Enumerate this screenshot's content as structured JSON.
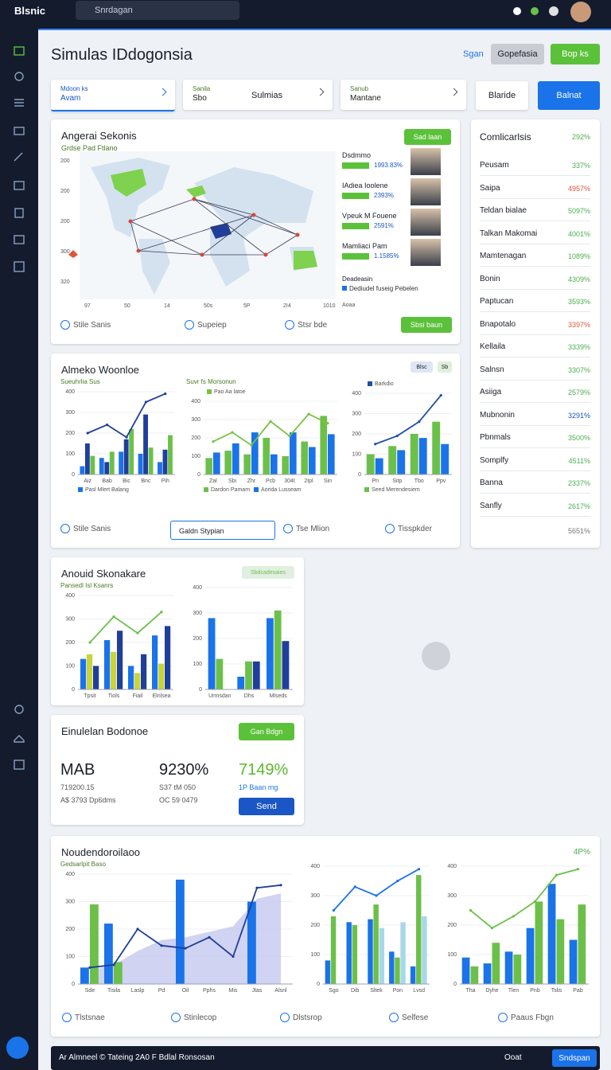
{
  "header": {
    "logo": "Blsnic",
    "search": "Snrdagan"
  },
  "page": {
    "title": "Simulas IDdogonsia",
    "link": "Sgan",
    "buttons": [
      "Gopefasia",
      "Bop ks"
    ]
  },
  "tabs": [
    {
      "small": "Mdoon ks",
      "label": "Avam"
    },
    {
      "small": "Sanila",
      "label": "Sbo",
      "value": "Sulmias"
    },
    {
      "small": "Sanub",
      "label": "Mantane"
    }
  ],
  "tab_buttons": [
    "Blaride",
    "Balnat"
  ],
  "map_card": {
    "title": "Angerai Sekonis",
    "subtitle": "Grdse Pad Ftlano",
    "button_top": "Sad laan",
    "y_labels": [
      "200",
      "200",
      "200",
      "300",
      "320"
    ],
    "x_labels": [
      "97",
      "50",
      "14",
      "50s",
      "5P",
      "2I4",
      "1010"
    ],
    "people": [
      {
        "name": "Dsdmmo",
        "value": "1993.83%"
      },
      {
        "name": "IAdiea Ioolene",
        "value": "2393%"
      },
      {
        "name": "Vpeuk M Fouene",
        "value": "2591%"
      },
      {
        "name": "Mamliaci Pam",
        "value": "1.1585%"
      }
    ],
    "note_title": "Deadeasin",
    "note_legend": "Dediudel fuseig Pebelen",
    "note_extra": "Aoaa",
    "footer": [
      "Stile Sanis",
      "Supeiep",
      "Stsr bde"
    ],
    "button": "Sbsi baun"
  },
  "right_list": {
    "title": "Comlicarlsis",
    "value": "292%",
    "rows": [
      {
        "name": "Peusam",
        "value": "337%",
        "color": "#4caf50"
      },
      {
        "name": "Saipa",
        "value": "4957%",
        "color": "#e0553b"
      },
      {
        "name": "Teldan bialae",
        "value": "5097%",
        "color": "#4caf50"
      },
      {
        "name": "Talkan Makomai",
        "value": "4001%",
        "color": "#4caf50"
      },
      {
        "name": "Mamtenagan",
        "value": "1089%",
        "color": "#4caf50"
      },
      {
        "name": "Bonin",
        "value": "4309%",
        "color": "#4caf50"
      },
      {
        "name": "Paptucan",
        "value": "3593%",
        "color": "#4caf50"
      },
      {
        "name": "Bnapotalo",
        "value": "3397%",
        "color": "#e0553b"
      },
      {
        "name": "Kellaila",
        "value": "3339%",
        "color": "#4caf50"
      },
      {
        "name": "Salnsn",
        "value": "3307%",
        "color": "#4caf50"
      },
      {
        "name": "Asiiga",
        "value": "2579%",
        "color": "#4caf50"
      },
      {
        "name": "Mubnonin",
        "value": "3291%",
        "color": "#1a56c4"
      },
      {
        "name": "Pbnmals",
        "value": "3500%",
        "color": "#4caf50"
      },
      {
        "name": "Somplfy",
        "value": "4511%",
        "color": "#4caf50"
      },
      {
        "name": "Banna",
        "value": "2337%",
        "color": "#4caf50"
      },
      {
        "name": "Sanfly",
        "value": "2617%",
        "color": "#4caf50"
      }
    ],
    "footer": "5651%"
  },
  "card2": {
    "title": "Almeko Woonloe",
    "badges": [
      "Blsc",
      "Sb"
    ],
    "charts": [
      {
        "type": "bar-line",
        "title": "Sueuhrlia Sus",
        "ylim": [
          0,
          400
        ],
        "yticks": [
          0,
          100,
          200,
          300,
          400
        ],
        "categories": [
          "Aiz",
          "Bab",
          "Bic",
          "Bnc",
          "Pih"
        ],
        "series": [
          {
            "name": "Pasl Mlert Balang",
            "type": "bar",
            "color": "#1a73e8",
            "values": [
              40,
              80,
              110,
              100,
              60
            ]
          },
          {
            "type": "bar",
            "color": "#1f3f9a",
            "values": [
              150,
              60,
              170,
              290,
              120
            ]
          },
          {
            "type": "bar",
            "color": "#6cc04a",
            "values": [
              90,
              110,
              220,
              130,
              190
            ]
          },
          {
            "type": "line",
            "color": "#1f3f9a",
            "values": [
              200,
              240,
              180,
              350,
              390
            ]
          }
        ]
      },
      {
        "type": "bar-line",
        "title": "Suvr fs Morsonun",
        "ylim": [
          0,
          400
        ],
        "yticks": [
          0,
          100,
          200,
          300,
          400
        ],
        "categories": [
          "Zal",
          "Sbi",
          "Zhr",
          "Pcb",
          "304t",
          "2Ipl",
          "Sin"
        ],
        "series": [
          {
            "name": "Dardon Pamam",
            "type": "bar",
            "color": "#6cc04a",
            "values": [
              90,
              130,
              110,
              200,
              100,
              180,
              320
            ]
          },
          {
            "name": "Aorida Lusseam",
            "type": "bar",
            "color": "#1a73e8",
            "values": [
              120,
              170,
              230,
              110,
              230,
              150,
              220
            ]
          },
          {
            "name": "Pao Aa latoe",
            "type": "line",
            "color": "#7ac143",
            "values": [
              180,
              230,
              160,
              290,
              210,
              330,
              280
            ]
          }
        ]
      },
      {
        "type": "bar-line",
        "ylim": [
          0,
          400
        ],
        "yticks": [
          0,
          100,
          200,
          300,
          400
        ],
        "categories": [
          "Pn",
          "Sitp",
          "Tbo",
          "Ppv"
        ],
        "series": [
          {
            "name": "Seed Merendesiem",
            "type": "bar",
            "color": "#6cc04a",
            "values": [
              100,
              140,
              200,
              260
            ]
          },
          {
            "type": "bar",
            "color": "#1a73e8",
            "values": [
              80,
              120,
              180,
              150
            ]
          },
          {
            "name": "Barkdio",
            "type": "line",
            "color": "#1f4fa8",
            "values": [
              150,
              190,
              260,
              390
            ]
          }
        ]
      }
    ],
    "footer": [
      "Stile Sanis",
      "Galdn Stypian",
      "Tse Mlion",
      "Tisspkder"
    ]
  },
  "card3": {
    "title": "Anouid Skonakare",
    "badge": "Sbdcadesaies",
    "charts": [
      {
        "type": "bar-line",
        "title": "Pansedl Isl Ksanrs",
        "ylim": [
          0,
          400
        ],
        "yticks": [
          0,
          100,
          200,
          300,
          400
        ],
        "categories": [
          "Tpsit",
          "Tiols",
          "Fiail",
          "Elnlsea"
        ],
        "series": [
          {
            "type": "bar",
            "color": "#1a73e8",
            "values": [
              130,
              210,
              100,
              230
            ]
          },
          {
            "type": "bar",
            "color": "#c9d33a",
            "values": [
              150,
              160,
              70,
              110
            ]
          },
          {
            "type": "bar",
            "color": "#1f3f9a",
            "values": [
              100,
              250,
              150,
              270
            ]
          },
          {
            "type": "line",
            "color": "#6cc04a",
            "values": [
              200,
              310,
              240,
              330
            ]
          }
        ]
      },
      {
        "type": "bar-line",
        "ylim": [
          0,
          400
        ],
        "yticks": [
          0,
          100,
          200,
          300,
          400
        ],
        "categories": [
          "Urmsdan",
          "Dhs",
          "Mlseds"
        ],
        "series": [
          {
            "type": "bar",
            "color": "#1a73e8",
            "values": [
              280,
              50,
              280
            ]
          },
          {
            "type": "bar",
            "color": "#6cc04a",
            "values": [
              120,
              110,
              310
            ]
          },
          {
            "type": "bar",
            "color": "#1f3f9a",
            "values": [
              0,
              110,
              190
            ]
          }
        ]
      }
    ]
  },
  "card4": {
    "title": "Einulelan Bodonoe",
    "button": "Gan Bdgn",
    "kpis": [
      {
        "value": "MAB",
        "sub": [
          "719200.15",
          "A$ 3793 Dp6dms"
        ]
      },
      {
        "value": "9230%",
        "sub": [
          "S37 tM 050",
          "OC 59 0479"
        ]
      },
      {
        "value": "7149%",
        "sub": [
          "1P Baan mg"
        ]
      }
    ],
    "send": "Send"
  },
  "card5": {
    "title": "Noudendoroilaoo",
    "badge": "4P%",
    "charts": [
      {
        "type": "bar-line",
        "title": "Gedsarlpit Baso",
        "ylim": [
          0,
          400
        ],
        "yticks": [
          0,
          100,
          200,
          300,
          400
        ],
        "categories": [
          "Sde",
          "Tisila",
          "Laslp",
          "Pd",
          "Oil",
          "Pphs",
          "Mis",
          "Jtas",
          "Alsnl"
        ],
        "series": [
          {
            "type": "area",
            "color": "#c4c8ee",
            "values": [
              50,
              70,
              120,
              160,
              170,
              190,
              210,
              310,
              330
            ]
          },
          {
            "type": "bar",
            "color": "#1a73e8",
            "values": [
              60,
              220,
              0,
              0,
              380,
              0,
              0,
              300,
              0
            ]
          },
          {
            "type": "bar",
            "color": "#6cc04a",
            "values": [
              290,
              80,
              0,
              0,
              0,
              0,
              0,
              0,
              0
            ]
          },
          {
            "type": "line",
            "color": "#1f3f9a",
            "values": [
              60,
              70,
              200,
              140,
              130,
              170,
              100,
              350,
              360
            ]
          }
        ]
      },
      {
        "type": "bar-line",
        "ylim": [
          0,
          400
        ],
        "yticks": [
          0,
          100,
          200,
          300,
          400
        ],
        "categories": [
          "Sgo",
          "Dib",
          "Sltek",
          "Pon",
          "Lvsd"
        ],
        "series": [
          {
            "type": "bar",
            "color": "#1a73e8",
            "values": [
              80,
              210,
              220,
              110,
              60
            ]
          },
          {
            "type": "bar",
            "color": "#6cc04a",
            "values": [
              230,
              200,
              270,
              90,
              370
            ]
          },
          {
            "type": "bar",
            "color": "#a8d8e8",
            "values": [
              0,
              0,
              190,
              210,
              230
            ]
          },
          {
            "type": "line",
            "color": "#1a73e8",
            "values": [
              250,
              330,
              300,
              350,
              390
            ]
          }
        ]
      },
      {
        "type": "bar-line",
        "ylim": [
          0,
          400
        ],
        "yticks": [
          0,
          100,
          200,
          300,
          400
        ],
        "categories": [
          "Tha",
          "Dyhe",
          "Tlen",
          "Pnb",
          "Tslis",
          "Pab"
        ],
        "series": [
          {
            "type": "bar",
            "color": "#1a73e8",
            "values": [
              90,
              70,
              110,
              190,
              340,
              150
            ]
          },
          {
            "type": "bar",
            "color": "#6cc04a",
            "values": [
              60,
              140,
              100,
              280,
              220,
              270
            ]
          },
          {
            "type": "line",
            "color": "#6cc04a",
            "values": [
              250,
              190,
              230,
              280,
              370,
              390
            ]
          }
        ]
      }
    ],
    "footer": [
      "Tlstsnae",
      "Stinlecop",
      "Dlstsrop",
      "Selfese",
      "Paaus Fbgn"
    ]
  },
  "bottom_bar": {
    "text": "Ar Almneel © Tateing 2A0 F Bdlal Ronsosan",
    "link": "Ooat",
    "button": "Sndspan"
  }
}
